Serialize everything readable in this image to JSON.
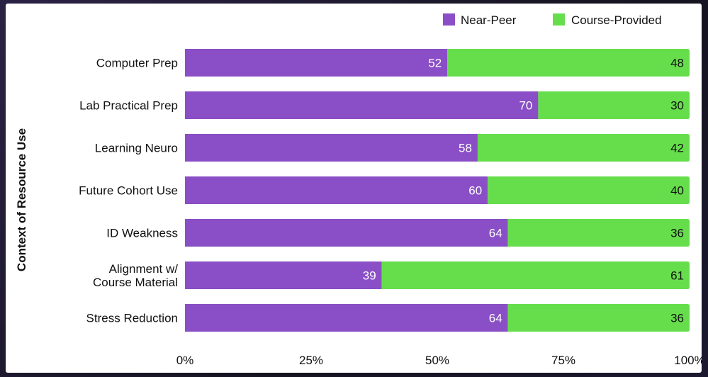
{
  "chart_data": {
    "type": "bar",
    "stacked": true,
    "orientation": "horizontal",
    "title": "",
    "xlabel": "",
    "ylabel": "Context of Resource Use",
    "categories": [
      "Computer Prep",
      "Lab Practical Prep",
      "Learning Neuro",
      "Future Cohort Use",
      "ID Weakness",
      "Alignment w/\nCourse Material",
      "Stress Reduction"
    ],
    "series": [
      {
        "name": "Near-Peer",
        "color": "#8a4fc6",
        "values": [
          52,
          70,
          58,
          60,
          64,
          39,
          64
        ]
      },
      {
        "name": "Course-Provided",
        "color": "#66de4c",
        "values": [
          48,
          30,
          42,
          40,
          36,
          61,
          36
        ]
      }
    ],
    "xlim": [
      0,
      100
    ],
    "xticks": [
      "0%",
      "25%",
      "50%",
      "75%",
      "100%"
    ],
    "grid": false,
    "legend": "top-right"
  }
}
